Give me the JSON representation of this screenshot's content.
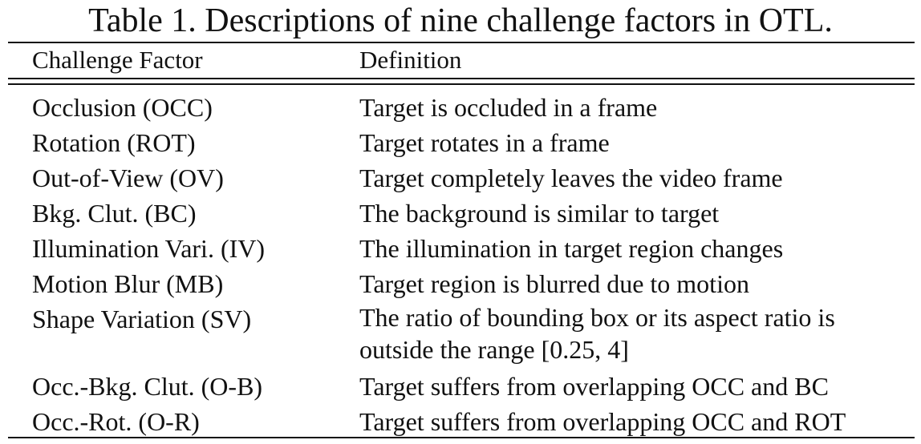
{
  "table": {
    "caption": "Table 1. Descriptions of nine challenge factors in OTL.",
    "columns": [
      "Challenge Factor",
      "Definition"
    ],
    "rows": [
      {
        "factor": "Occlusion (OCC)",
        "definition": "Target is occluded in a frame"
      },
      {
        "factor": "Rotation (ROT)",
        "definition": "Target rotates in a frame"
      },
      {
        "factor": "Out-of-View (OV)",
        "definition": "Target completely leaves the video frame"
      },
      {
        "factor": "Bkg. Clut. (BC)",
        "definition": "The background is similar to target"
      },
      {
        "factor": "Illumination Vari. (IV)",
        "definition": "The illumination in target region changes"
      },
      {
        "factor": "Motion Blur (MB)",
        "definition": "Target region is blurred due to motion"
      },
      {
        "factor": "Shape Variation (SV)",
        "definition": "The ratio of bounding box or its aspect ratio is outside the range [0.25, 4]"
      },
      {
        "factor": "Occ.-Bkg. Clut. (O-B)",
        "definition": "Target suffers from overlapping OCC and BC"
      },
      {
        "factor": "Occ.-Rot. (O-R)",
        "definition": "Target suffers from overlapping OCC and ROT"
      }
    ]
  }
}
